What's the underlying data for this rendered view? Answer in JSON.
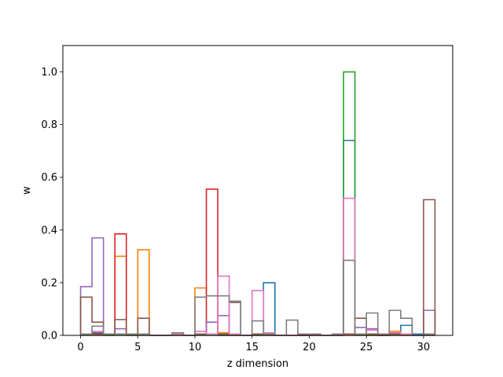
{
  "chart_data": {
    "type": "histogram-step",
    "title": "",
    "xlabel": "z dimension",
    "ylabel": "w",
    "xlim": [
      -1.55,
      32.55
    ],
    "ylim": [
      0,
      1.1
    ],
    "bin_edges": [
      0,
      1,
      2,
      3,
      4,
      5,
      6,
      7,
      8,
      9,
      10,
      11,
      12,
      13,
      14,
      15,
      16,
      17,
      18,
      19,
      20,
      21,
      22,
      23,
      24,
      25,
      26,
      27,
      28,
      29,
      30,
      31
    ],
    "xticks": [
      0,
      5,
      10,
      15,
      20,
      25,
      30
    ],
    "yticks": [
      0.0,
      0.2,
      0.4,
      0.6,
      0.8,
      1.0
    ],
    "grid": false,
    "legend": "none",
    "series": [
      {
        "color": "#1f77b4",
        "values": [
          0.005,
          0.01,
          0.005,
          0.005,
          0.005,
          0.005,
          0,
          0,
          0.005,
          0,
          0.005,
          0.005,
          0,
          0,
          0,
          0.005,
          0.2,
          0,
          0,
          0,
          0,
          0,
          0,
          0.74,
          0.005,
          0.005,
          0.005,
          0.005,
          0.038,
          0.005,
          0.005
        ]
      },
      {
        "color": "#ff7f0e",
        "values": [
          0.005,
          0.005,
          0,
          0.3,
          0,
          0.325,
          0,
          0,
          0,
          0,
          0.18,
          0.15,
          0.01,
          0,
          0,
          0,
          0,
          0,
          0,
          0,
          0,
          0,
          0,
          0,
          0,
          0,
          0,
          0.015,
          0,
          0,
          0
        ]
      },
      {
        "color": "#2ca02c",
        "values": [
          0,
          0,
          0,
          0,
          0,
          0,
          0,
          0,
          0,
          0,
          0,
          0,
          0,
          0,
          0,
          0,
          0,
          0,
          0,
          0,
          0,
          0,
          0,
          1.0,
          0,
          0,
          0,
          0,
          0,
          0,
          0
        ]
      },
      {
        "color": "#d62728",
        "values": [
          0.005,
          0.005,
          0.005,
          0.385,
          0.005,
          0.005,
          0,
          0,
          0.005,
          0,
          0.005,
          0.555,
          0.005,
          0.005,
          0,
          0.005,
          0.005,
          0,
          0,
          0,
          0,
          0,
          0,
          0.005,
          0.005,
          0.005,
          0,
          0.005,
          0.005,
          0,
          0.005
        ]
      },
      {
        "color": "#9467bd",
        "values": [
          0.185,
          0.37,
          0.005,
          0.025,
          0.005,
          0.005,
          0,
          0,
          0.005,
          0,
          0.005,
          0.05,
          0.075,
          0.005,
          0,
          0.005,
          0.005,
          0,
          0,
          0,
          0,
          0,
          0,
          0.005,
          0.03,
          0.025,
          0.005,
          0.005,
          0.005,
          0,
          0.095
        ]
      },
      {
        "color": "#8c564b",
        "values": [
          0.145,
          0.05,
          0.005,
          0.06,
          0.005,
          0.065,
          0,
          0,
          0.005,
          0,
          0.005,
          0.005,
          0.005,
          0.125,
          0,
          0.005,
          0.005,
          0,
          0,
          0,
          0,
          0,
          0,
          0.005,
          0.065,
          0.005,
          0.005,
          0.005,
          0.005,
          0,
          0.515
        ]
      },
      {
        "color": "#e377c2",
        "values": [
          0.005,
          0.015,
          0.005,
          0.005,
          0.005,
          0.005,
          0,
          0,
          0.005,
          0,
          0.015,
          0.005,
          0.225,
          0.005,
          0,
          0.17,
          0.01,
          0,
          0,
          0.005,
          0,
          0,
          0,
          0.52,
          0.005,
          0.02,
          0.005,
          0.01,
          0.005,
          0,
          0.005
        ]
      },
      {
        "color": "#7f7f7f",
        "values": [
          0.005,
          0.035,
          0.005,
          0.005,
          0.005,
          0.005,
          0,
          0,
          0.01,
          0,
          0.145,
          0.15,
          0.15,
          0.13,
          0,
          0.055,
          0.005,
          0,
          0.058,
          0.005,
          0.005,
          0,
          0.005,
          0.285,
          0.005,
          0.085,
          0.005,
          0.095,
          0.065,
          0,
          0.005
        ]
      }
    ]
  }
}
